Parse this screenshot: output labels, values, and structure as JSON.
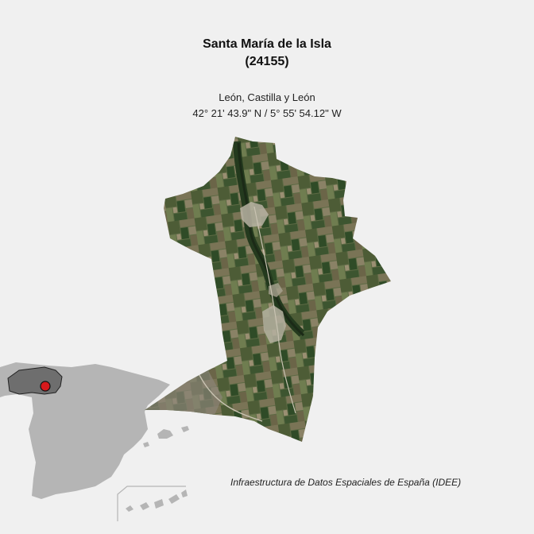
{
  "municipality": {
    "name": "Santa María de la Isla",
    "code": "(24155)",
    "region": "León, Castilla y León",
    "coordinates": "42° 21' 43.9\" N / 5° 55' 54.12\" W"
  },
  "credit": "Infraestructura de Datos Espaciales de España (IDEE)",
  "colors": {
    "background": "#f0f0f0",
    "spain_fill": "#b5b5b5",
    "province_fill": "#6e6e6e",
    "marker_fill": "#d7191c",
    "satellite_base": "#5b6a45"
  }
}
